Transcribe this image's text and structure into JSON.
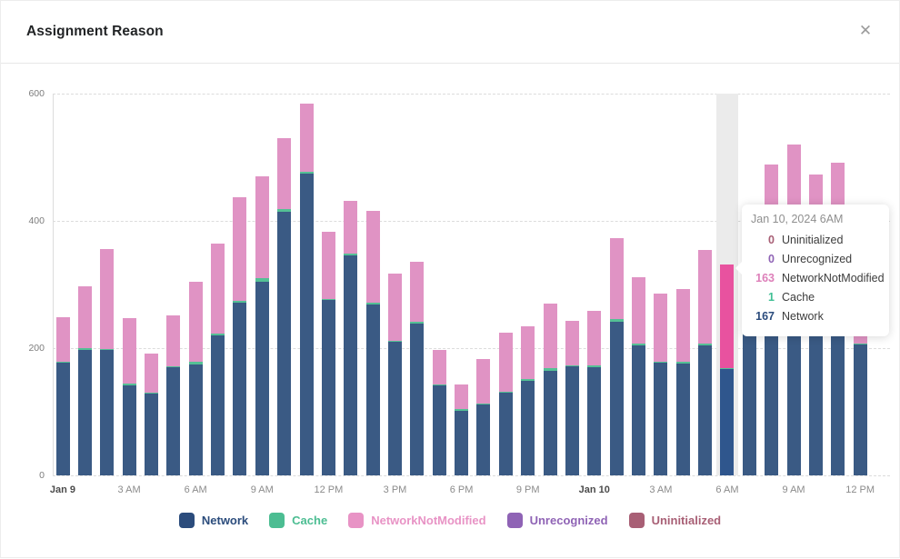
{
  "header": {
    "title": "Assignment Reason",
    "close_glyph": "✕"
  },
  "colors": {
    "network": "#3A5A84",
    "cache": "#54C095",
    "network_not_modified": "#E093C4",
    "unrecognized": "#9268B8",
    "uninitialized": "#A85F75",
    "network_active": "#2F568D",
    "network_not_modified_active": "#E8529F",
    "highlight_band": "#EBEBEB"
  },
  "chart_data": {
    "type": "bar",
    "stacked": true,
    "title": "Assignment Reason",
    "xlabel": "",
    "ylabel": "",
    "ylim": [
      0,
      600
    ],
    "yticks": [
      0,
      200,
      400,
      600
    ],
    "grid": "dashed-horizontal",
    "legend_position": "bottom",
    "x": [
      "Jan 9 12AM",
      "1AM",
      "2AM",
      "3AM",
      "4AM",
      "5AM",
      "6AM",
      "7AM",
      "8AM",
      "9AM",
      "10AM",
      "11AM",
      "12PM",
      "1PM",
      "2PM",
      "3PM",
      "4PM",
      "5PM",
      "6PM",
      "7PM",
      "8PM",
      "9PM",
      "10PM",
      "11PM",
      "Jan 10 12AM",
      "1AM",
      "2AM",
      "3AM",
      "4AM",
      "5AM",
      "6AM",
      "7AM",
      "8AM",
      "9AM",
      "10AM",
      "11AM",
      "12PM"
    ],
    "xticks": [
      {
        "label": "Jan 9",
        "bold": true
      },
      {
        "label": "3 AM",
        "bold": false
      },
      {
        "label": "6 AM",
        "bold": false
      },
      {
        "label": "9 AM",
        "bold": false
      },
      {
        "label": "12 PM",
        "bold": false
      },
      {
        "label": "3 PM",
        "bold": false
      },
      {
        "label": "6 PM",
        "bold": false
      },
      {
        "label": "9 PM",
        "bold": false
      },
      {
        "label": "Jan 10",
        "bold": true
      },
      {
        "label": "3 AM",
        "bold": false
      },
      {
        "label": "6 AM",
        "bold": false
      },
      {
        "label": "9 AM",
        "bold": false
      },
      {
        "label": "12 PM",
        "bold": false
      }
    ],
    "series": [
      {
        "name": "Network",
        "color": "#3A5A84",
        "values": [
          177,
          197,
          197,
          142,
          128,
          170,
          175,
          220,
          271,
          305,
          414,
          474,
          275,
          346,
          268,
          210,
          238,
          141,
          102,
          111,
          130,
          148,
          165,
          171,
          170,
          242,
          204,
          177,
          175,
          204,
          167,
          221,
          250,
          260,
          255,
          260,
          205
        ]
      },
      {
        "name": "Cache",
        "color": "#54C095",
        "values": [
          2,
          3,
          2,
          2,
          2,
          2,
          3,
          3,
          3,
          5,
          5,
          3,
          2,
          3,
          3,
          2,
          3,
          2,
          2,
          2,
          2,
          3,
          3,
          2,
          3,
          4,
          3,
          2,
          3,
          3,
          1,
          2,
          3,
          3,
          3,
          3,
          2
        ]
      },
      {
        "name": "NetworkNotModified",
        "color": "#E093C4",
        "values": [
          69,
          97,
          157,
          103,
          61,
          80,
          127,
          142,
          163,
          160,
          111,
          108,
          106,
          82,
          145,
          105,
          95,
          54,
          39,
          70,
          92,
          84,
          102,
          70,
          86,
          127,
          105,
          107,
          115,
          148,
          163,
          180,
          235,
          257,
          215,
          228,
          25
        ]
      },
      {
        "name": "Unrecognized",
        "color": "#9268B8",
        "values": [
          0,
          0,
          0,
          0,
          0,
          0,
          0,
          0,
          0,
          0,
          0,
          0,
          0,
          0,
          0,
          0,
          0,
          0,
          0,
          0,
          0,
          0,
          0,
          0,
          0,
          0,
          0,
          0,
          0,
          0,
          0,
          0,
          0,
          0,
          0,
          0,
          0
        ]
      },
      {
        "name": "Uninitialized",
        "color": "#A85F75",
        "values": [
          0,
          0,
          0,
          0,
          0,
          0,
          0,
          0,
          0,
          0,
          0,
          0,
          0,
          0,
          0,
          0,
          0,
          0,
          0,
          0,
          0,
          0,
          0,
          0,
          0,
          0,
          0,
          0,
          0,
          0,
          0,
          0,
          0,
          0,
          0,
          0,
          0
        ]
      }
    ],
    "hover_index": 30
  },
  "tooltip": {
    "title": "Jan 10, 2024 6AM",
    "rows": [
      {
        "value": "0",
        "label": "Uninitialized",
        "color": "#A85F75"
      },
      {
        "value": "0",
        "label": "Unrecognized",
        "color": "#8F63B5"
      },
      {
        "value": "163",
        "label": "NetworkNotModified",
        "color": "#DD7FB9"
      },
      {
        "value": "1",
        "label": "Cache",
        "color": "#3FBF94"
      },
      {
        "value": "167",
        "label": "Network",
        "color": "#2A4B7C"
      }
    ]
  },
  "legend": {
    "items": [
      {
        "label": "Network",
        "color": "#2B4C7C"
      },
      {
        "label": "Cache",
        "color": "#4CBD92"
      },
      {
        "label": "NetworkNotModified",
        "color": "#E893C5"
      },
      {
        "label": "Unrecognized",
        "color": "#8F63B5"
      },
      {
        "label": "Uninitialized",
        "color": "#A85F75"
      }
    ]
  }
}
